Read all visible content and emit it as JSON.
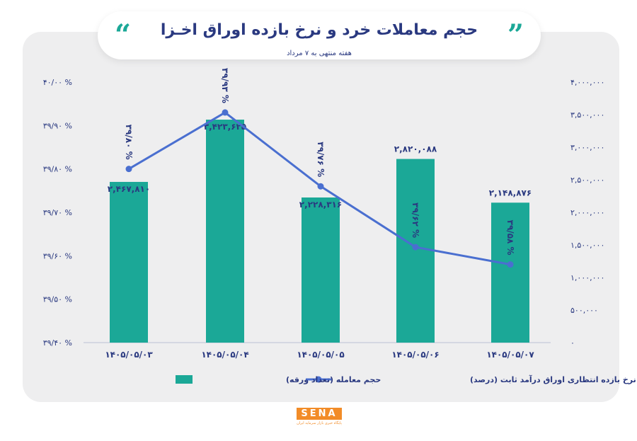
{
  "header": {
    "title": "حجم معاملات خرد و نرخ بازده اوراق اخـزا",
    "subtitle": "هفته منتهی به ۷ مرداد"
  },
  "logo": {
    "name": "SENA",
    "tagline": "پایگاه خبری بازار سرمایه ایران"
  },
  "colors": {
    "bar": "#1ba897",
    "line": "#4a6fd0",
    "text": "#2a3980",
    "panel": "#eeeeef"
  },
  "chart_data": {
    "type": "bar",
    "categories": [
      "۱۴۰۵/۰۵/۰۳",
      "۱۴۰۵/۰۵/۰۴",
      "۱۴۰۵/۰۵/۰۵",
      "۱۴۰۵/۰۵/۰۶",
      "۱۴۰۵/۰۵/۰۷"
    ],
    "series": [
      {
        "name": "حجم معامله (تعداد ورقه)",
        "type": "bar",
        "axis": "right",
        "values": [
          2467810,
          3423625,
          2228316,
          2820088,
          2148876
        ],
        "labels": [
          "۲,۴۶۷,۸۱۰",
          "۳,۴۲۳,۶۲۵",
          "۲,۲۲۸,۳۱۶",
          "۲,۸۲۰,۰۸۸",
          "۲,۱۴۸,۸۷۶"
        ]
      },
      {
        "name": "نرخ بازده انتظاری اوراق درآمد ثابت (درصد)",
        "type": "line",
        "axis": "left",
        "values": [
          39.8,
          39.93,
          39.76,
          39.62,
          39.58
        ],
        "labels": [
          "۳۹/۸۰ %",
          "۳۹/۹۳ %",
          "۳۹/۷۶ %",
          "۳۹/۶۲ %",
          "۳۹/۵۸ %"
        ]
      }
    ],
    "left_axis": {
      "ylim": [
        39.4,
        40.0
      ],
      "tick_labels": [
        "۴۰/۰۰ %",
        "۳۹/۹۰ %",
        "۳۹/۸۰ %",
        "۳۹/۷۰ %",
        "۳۹/۶۰ %",
        "۳۹/۵۰ %",
        "۳۹/۴۰ %"
      ]
    },
    "right_axis": {
      "ylim": [
        0,
        4000000
      ],
      "tick_labels": [
        "۴,۰۰۰,۰۰۰",
        "۳,۵۰۰,۰۰۰",
        "۳,۰۰۰,۰۰۰",
        "۲,۵۰۰,۰۰۰",
        "۲,۰۰۰,۰۰۰",
        "۱,۵۰۰,۰۰۰",
        "۱,۰۰۰,۰۰۰",
        "۵۰۰,۰۰۰",
        "۰"
      ]
    },
    "grid": false,
    "legend": "bottom"
  }
}
